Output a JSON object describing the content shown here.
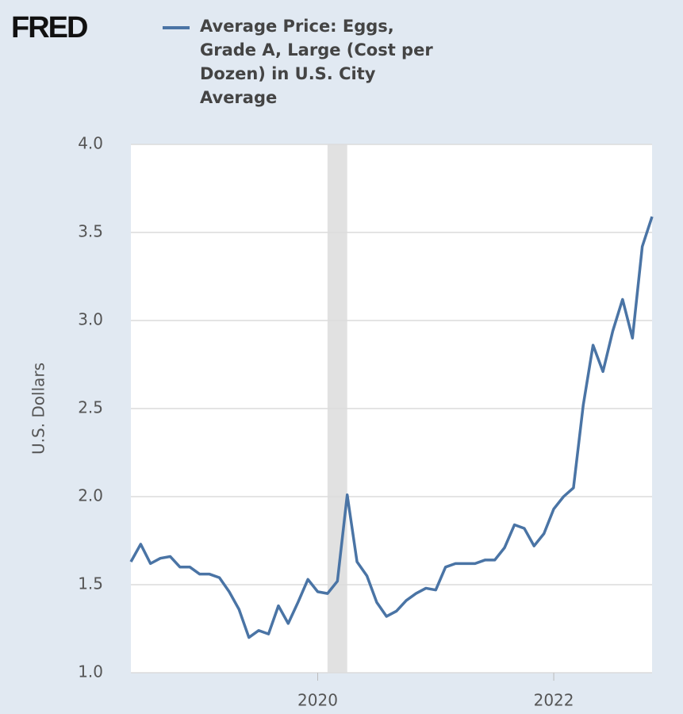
{
  "logo": "FRED",
  "chart_data": {
    "type": "line",
    "y_label": "U.S. Dollars",
    "x": [
      2018.417,
      2018.5,
      2018.583,
      2018.667,
      2018.75,
      2018.833,
      2018.917,
      2019,
      2019.083,
      2019.167,
      2019.25,
      2019.333,
      2019.417,
      2019.5,
      2019.583,
      2019.667,
      2019.75,
      2019.833,
      2019.917,
      2020,
      2020.083,
      2020.167,
      2020.25,
      2020.333,
      2020.417,
      2020.5,
      2020.583,
      2020.667,
      2020.75,
      2020.833,
      2020.917,
      2021,
      2021.083,
      2021.167,
      2021.25,
      2021.333,
      2021.417,
      2021.5,
      2021.583,
      2021.667,
      2021.75,
      2021.833,
      2021.917,
      2022,
      2022.083,
      2022.167,
      2022.25,
      2022.333,
      2022.417,
      2022.5,
      2022.583,
      2022.667,
      2022.75,
      2022.833
    ],
    "series": [
      {
        "name": "Average Price: Eggs, Grade A, Large (Cost per Dozen) in U.S. City Average",
        "color": "#4a74a5",
        "values": [
          1.63,
          1.73,
          1.62,
          1.65,
          1.66,
          1.6,
          1.6,
          1.56,
          1.56,
          1.54,
          1.46,
          1.36,
          1.2,
          1.24,
          1.22,
          1.38,
          1.28,
          1.4,
          1.53,
          1.46,
          1.45,
          1.52,
          2.01,
          1.63,
          1.55,
          1.4,
          1.32,
          1.35,
          1.41,
          1.45,
          1.48,
          1.47,
          1.6,
          1.62,
          1.62,
          1.62,
          1.64,
          1.64,
          1.71,
          1.84,
          1.82,
          1.72,
          1.79,
          1.93,
          2.0,
          2.05,
          2.52,
          2.86,
          2.71,
          2.94,
          3.12,
          2.9,
          3.42,
          3.59
        ]
      }
    ],
    "shaded_ranges": [
      [
        2020.083,
        2020.25
      ]
    ],
    "xlim": [
      2018.417,
      2022.833
    ],
    "xticks": [
      2020,
      2022
    ],
    "ylim": [
      1,
      4
    ],
    "yticks": [
      {
        "value": 1,
        "label": "1.0"
      },
      1.5,
      {
        "value": 2,
        "label": "2.0"
      },
      2.5,
      {
        "value": 3,
        "label": "3.0"
      },
      3.5,
      {
        "value": 4,
        "label": "4.0"
      }
    ],
    "grid": true
  }
}
